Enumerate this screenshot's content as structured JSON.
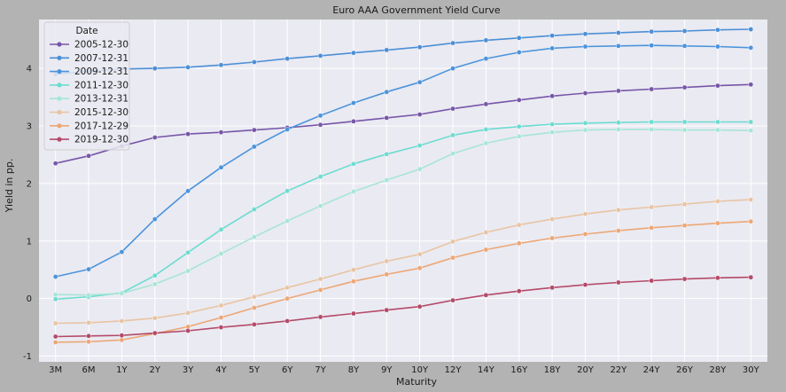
{
  "chart_data": {
    "type": "line",
    "title": "Euro AAA Government Yield Curve",
    "xlabel": "Maturity",
    "ylabel": "Yield in pp.",
    "legend_title": "Date",
    "legend_position": "top-left",
    "grid": true,
    "ylim": [
      -1.1,
      4.85
    ],
    "yticks": [
      -1,
      0,
      1,
      2,
      3,
      4
    ],
    "categories": [
      "3M",
      "6M",
      "1Y",
      "2Y",
      "3Y",
      "4Y",
      "5Y",
      "6Y",
      "7Y",
      "8Y",
      "9Y",
      "10Y",
      "12Y",
      "14Y",
      "16Y",
      "18Y",
      "20Y",
      "22Y",
      "24Y",
      "26Y",
      "28Y",
      "30Y"
    ],
    "series": [
      {
        "name": "2005-12-30",
        "color": "#7656a8",
        "values": [
          2.35,
          2.48,
          2.65,
          2.8,
          2.86,
          2.89,
          2.93,
          2.97,
          3.02,
          3.08,
          3.14,
          3.2,
          3.3,
          3.38,
          3.45,
          3.52,
          3.57,
          3.61,
          3.64,
          3.67,
          3.7,
          3.72
        ]
      },
      {
        "name": "2007-12-31",
        "color": "#4b8fd6",
        "values": [
          3.9,
          3.95,
          3.99,
          4.0,
          4.02,
          4.06,
          4.11,
          4.17,
          4.22,
          4.27,
          4.32,
          4.37,
          4.44,
          4.49,
          4.53,
          4.57,
          4.6,
          4.62,
          4.64,
          4.65,
          4.67,
          4.68
        ]
      },
      {
        "name": "2009-12-31",
        "color": "#4b94dc",
        "values": [
          0.38,
          0.51,
          0.81,
          1.38,
          1.87,
          2.28,
          2.64,
          2.94,
          3.18,
          3.4,
          3.59,
          3.76,
          4.0,
          4.17,
          4.28,
          4.35,
          4.38,
          4.39,
          4.4,
          4.39,
          4.38,
          4.36
        ]
      },
      {
        "name": "2011-12-30",
        "color": "#6cdcd0",
        "values": [
          -0.01,
          0.03,
          0.1,
          0.4,
          0.8,
          1.2,
          1.55,
          1.87,
          2.12,
          2.34,
          2.51,
          2.66,
          2.84,
          2.94,
          2.99,
          3.03,
          3.05,
          3.06,
          3.07,
          3.07,
          3.07,
          3.07
        ]
      },
      {
        "name": "2013-12-31",
        "color": "#a6e6d6",
        "values": [
          0.07,
          0.06,
          0.09,
          0.25,
          0.48,
          0.78,
          1.07,
          1.35,
          1.61,
          1.86,
          2.06,
          2.25,
          2.52,
          2.7,
          2.82,
          2.89,
          2.93,
          2.94,
          2.94,
          2.93,
          2.93,
          2.92
        ]
      },
      {
        "name": "2015-12-30",
        "color": "#e8c4a2",
        "values": [
          -0.43,
          -0.42,
          -0.39,
          -0.34,
          -0.25,
          -0.12,
          0.03,
          0.19,
          0.34,
          0.5,
          0.65,
          0.77,
          0.99,
          1.15,
          1.28,
          1.38,
          1.47,
          1.54,
          1.59,
          1.64,
          1.69,
          1.72
        ]
      },
      {
        "name": "2017-12-29",
        "color": "#eca776",
        "values": [
          -0.76,
          -0.75,
          -0.72,
          -0.61,
          -0.49,
          -0.33,
          -0.16,
          0.0,
          0.15,
          0.3,
          0.42,
          0.53,
          0.71,
          0.85,
          0.96,
          1.05,
          1.12,
          1.18,
          1.23,
          1.27,
          1.31,
          1.34
        ]
      },
      {
        "name": "2019-12-30",
        "color": "#b44a68",
        "values": [
          -0.66,
          -0.65,
          -0.64,
          -0.6,
          -0.56,
          -0.5,
          -0.45,
          -0.39,
          -0.32,
          -0.26,
          -0.2,
          -0.14,
          -0.03,
          0.06,
          0.13,
          0.19,
          0.24,
          0.28,
          0.31,
          0.34,
          0.36,
          0.37
        ]
      }
    ]
  }
}
